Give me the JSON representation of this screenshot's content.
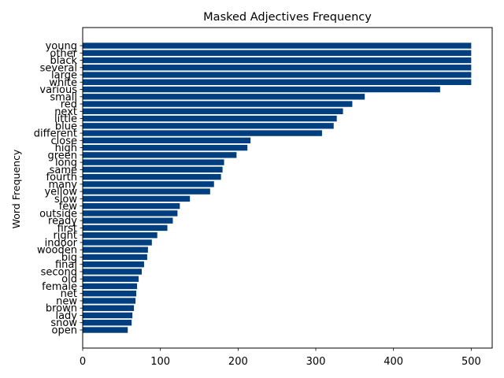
{
  "chart_data": {
    "type": "bar",
    "orientation": "horizontal",
    "title": "Masked Adjectives Frequency",
    "xlabel": "",
    "ylabel": "Word Frequency",
    "xlim": [
      0,
      527
    ],
    "xticks": [
      0,
      100,
      200,
      300,
      400,
      500
    ],
    "grid": false,
    "legend": "none",
    "bar_color": "#003f7f",
    "categories": [
      "young",
      "other",
      "black",
      "several",
      "large",
      "white",
      "various",
      "small",
      "red",
      "next",
      "little",
      "blue",
      "different",
      "close",
      "high",
      "green",
      "long",
      "same",
      "fourth",
      "many",
      "yellow",
      "slow",
      "few",
      "outside",
      "ready",
      "first",
      "right",
      "indoor",
      "wooden",
      "big",
      "final",
      "second",
      "old",
      "female",
      "net",
      "new",
      "brown",
      "lady",
      "snow",
      "open"
    ],
    "values": [
      500,
      500,
      500,
      500,
      500,
      500,
      460,
      363,
      347,
      335,
      327,
      323,
      308,
      216,
      212,
      198,
      182,
      180,
      178,
      169,
      164,
      138,
      125,
      122,
      116,
      109,
      96,
      89,
      84,
      83,
      79,
      76,
      72,
      70,
      69,
      68,
      66,
      64,
      63,
      58
    ]
  }
}
